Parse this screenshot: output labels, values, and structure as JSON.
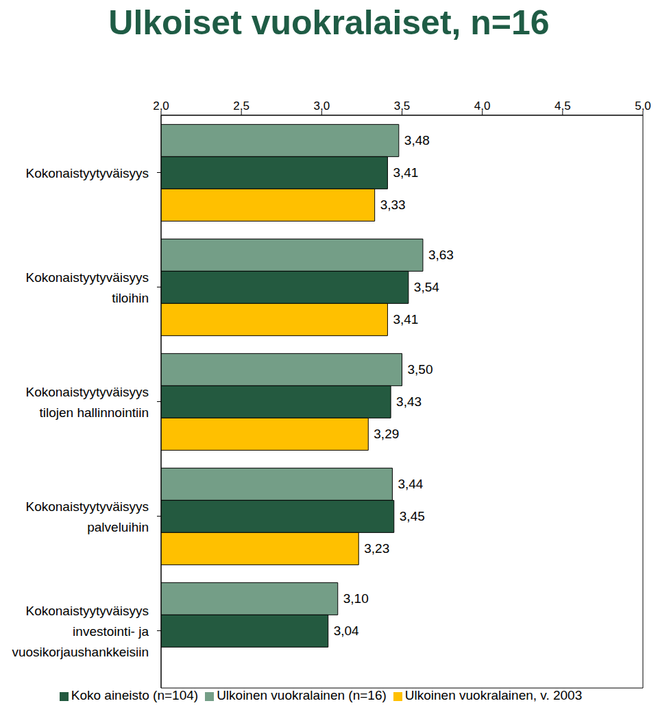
{
  "chart_data": {
    "type": "bar",
    "orientation": "horizontal",
    "title": "Ulkoiset vuokralaiset, n=16",
    "categories": [
      "Kokonaistyytyväisyys",
      "Kokonaistyytyväisyys tiloihin",
      "Kokonaistyytyväisyys tilojen hallinnointiin",
      "Kokonaistyytyväisyys palveluihin",
      "Kokonaistyytyväisyys investointi- ja vuosikorjaushankkeisiin"
    ],
    "series": [
      {
        "name": "Ulkoinen vuokralainen (n=16)",
        "color": "#749E87",
        "values": [
          3.48,
          3.63,
          3.5,
          3.44,
          3.1
        ],
        "value_labels": [
          "3,48",
          "3,63",
          "3,50",
          "3,44",
          "3,10"
        ]
      },
      {
        "name": "Koko aineisto (n=104)",
        "color": "#245A40",
        "values": [
          3.41,
          3.54,
          3.43,
          3.45,
          3.04
        ],
        "value_labels": [
          "3,41",
          "3,54",
          "3,43",
          "3,45",
          "3,04"
        ]
      },
      {
        "name": "Ulkoinen vuokralainen, v. 2003",
        "color": "#FFC000",
        "values": [
          3.33,
          3.41,
          3.29,
          3.23,
          null
        ],
        "value_labels": [
          "3,33",
          "3,41",
          "3,29",
          "3,23",
          null
        ]
      }
    ],
    "xlim": [
      2.0,
      5.0
    ],
    "xticks": [
      {
        "value": 2.0,
        "label": "2,0"
      },
      {
        "value": 2.5,
        "label": "2,5"
      },
      {
        "value": 3.0,
        "label": "3,0"
      },
      {
        "value": 3.5,
        "label": "3,5"
      },
      {
        "value": 4.0,
        "label": "4,0"
      },
      {
        "value": 4.5,
        "label": "4,5"
      },
      {
        "value": 5.0,
        "label": "5,0"
      }
    ],
    "data_labels": true,
    "legend": "bottom",
    "grid": false
  }
}
